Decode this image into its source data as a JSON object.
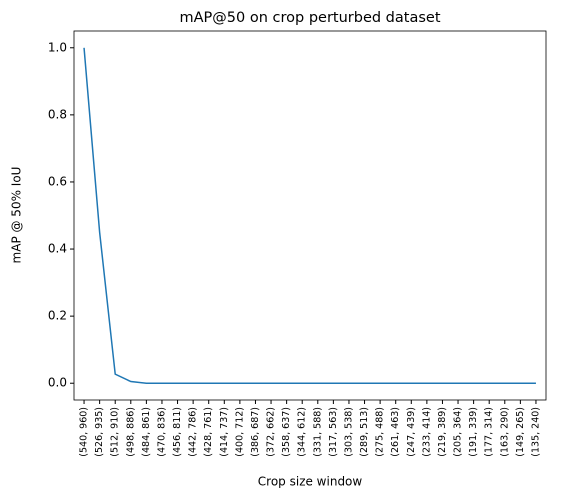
{
  "chart_data": {
    "type": "line",
    "title": "mAP@50 on crop perturbed dataset",
    "xlabel": "Crop size window",
    "ylabel": "mAP @ 50% IoU",
    "categories": [
      "(540, 960)",
      "(526, 935)",
      "(512, 910)",
      "(498, 886)",
      "(484, 861)",
      "(470, 836)",
      "(456, 811)",
      "(442, 786)",
      "(428, 761)",
      "(414, 737)",
      "(400, 712)",
      "(386, 687)",
      "(372, 662)",
      "(358, 637)",
      "(344, 612)",
      "(331, 588)",
      "(317, 563)",
      "(303, 538)",
      "(289, 513)",
      "(275, 488)",
      "(261, 463)",
      "(247, 439)",
      "(233, 414)",
      "(219, 389)",
      "(205, 364)",
      "(191, 339)",
      "(177, 314)",
      "(163, 290)",
      "(149, 265)",
      "(135, 240)"
    ],
    "values": [
      1.0,
      0.45,
      0.027,
      0.005,
      0.0,
      0.0,
      0.0,
      0.0,
      0.0,
      0.0,
      0.0,
      0.0,
      0.0,
      0.0,
      0.0,
      0.0,
      0.0,
      0.0,
      0.0,
      0.0,
      0.0,
      0.0,
      0.0,
      0.0,
      0.0,
      0.0,
      0.0,
      0.0,
      0.0,
      0.0
    ],
    "color": "#1f77b4",
    "ylim": [
      -0.05,
      1.05
    ],
    "yticks": [
      {
        "value": 0,
        "label": "0.0"
      },
      0.2,
      0.4,
      0.6,
      0.8,
      {
        "value": 1,
        "label": "1.0"
      }
    ],
    "grid": false
  }
}
